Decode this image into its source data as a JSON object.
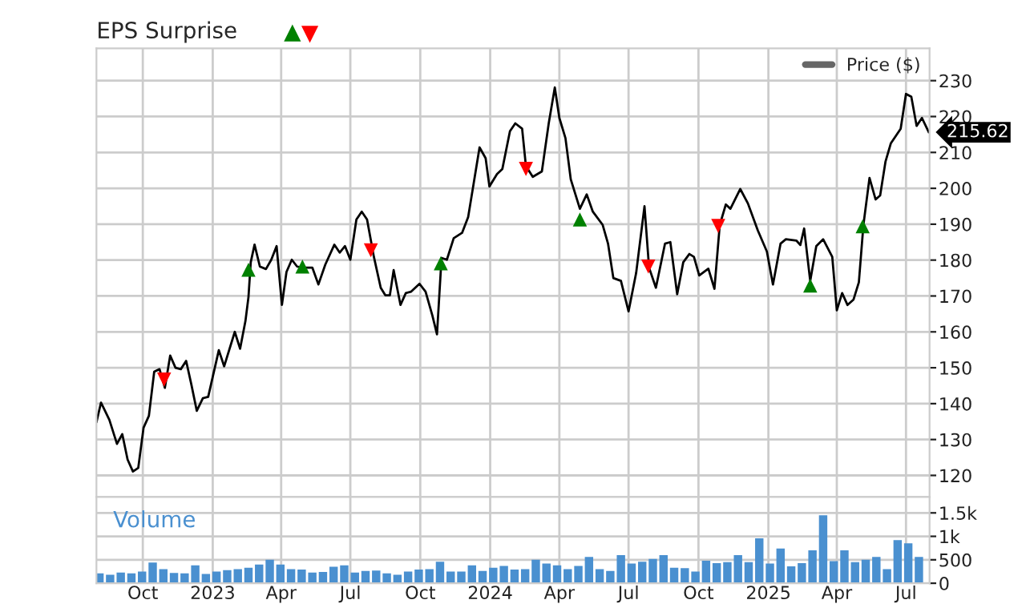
{
  "chart_data": [
    {
      "type": "line",
      "title": "EPS Surprise",
      "legend": "top right",
      "grid": true,
      "tick_labels": "y",
      "xlim": [
        "2022-08-01",
        "2025-08-01"
      ],
      "xticks": [
        {
          "value": "2022-10-01",
          "label": null
        },
        {
          "value": "2023-01-01",
          "label": null
        },
        {
          "value": "2023-04-01",
          "label": null
        },
        {
          "value": "2023-07-01",
          "label": null
        },
        {
          "value": "2023-10-01",
          "label": null
        },
        {
          "value": "2024-01-01",
          "label": null
        },
        {
          "value": "2024-04-01",
          "label": null
        },
        {
          "value": "2024-07-01",
          "label": null
        },
        {
          "value": "2024-10-01",
          "label": null
        },
        {
          "value": "2025-01-01",
          "label": null
        },
        {
          "value": "2025-04-01",
          "label": null
        },
        {
          "value": "2025-07-01",
          "label": null
        }
      ],
      "ylim": [
        114,
        239
      ],
      "yticks": [
        120,
        130,
        140,
        150,
        160,
        170,
        180,
        190,
        200,
        210,
        220,
        230
      ],
      "annotations": [
        {
          "text": "215.62",
          "x": "2025-07-31",
          "y": 215.62
        }
      ],
      "x": [
        "2022-08-01",
        "2022-08-07",
        "2022-08-18",
        "2022-08-28",
        "2022-09-04",
        "2022-09-11",
        "2022-09-18",
        "2022-09-25",
        "2022-10-02",
        "2022-10-09",
        "2022-10-16",
        "2022-10-23",
        "2022-10-30",
        "2022-11-06",
        "2022-11-13",
        "2022-11-20",
        "2022-11-27",
        "2022-12-04",
        "2022-12-11",
        "2022-12-19",
        "2022-12-26",
        "2023-01-09",
        "2023-01-16",
        "2023-01-30",
        "2023-02-06",
        "2023-02-13",
        "2023-02-17",
        "2023-02-20",
        "2023-02-25",
        "2023-03-04",
        "2023-03-12",
        "2023-03-19",
        "2023-03-26",
        "2023-04-02",
        "2023-04-08",
        "2023-04-15",
        "2023-04-22",
        "2023-04-29",
        "2023-05-12",
        "2023-05-20",
        "2023-05-29",
        "2023-06-10",
        "2023-06-17",
        "2023-06-24",
        "2023-07-01",
        "2023-07-09",
        "2023-07-16",
        "2023-07-23",
        "2023-08-01",
        "2023-08-10",
        "2023-08-16",
        "2023-08-22",
        "2023-08-27",
        "2023-09-05",
        "2023-09-12",
        "2023-09-19",
        "2023-09-30",
        "2023-10-08",
        "2023-10-17",
        "2023-10-23",
        "2023-10-29",
        "2023-11-05",
        "2023-11-14",
        "2023-11-25",
        "2023-12-03",
        "2023-12-10",
        "2023-12-18",
        "2023-12-26",
        "2023-12-31",
        "2024-01-10",
        "2024-01-17",
        "2024-01-27",
        "2024-02-03",
        "2024-02-12",
        "2024-02-17",
        "2024-02-26",
        "2024-03-09",
        "2024-03-18",
        "2024-03-26",
        "2024-04-01",
        "2024-04-09",
        "2024-04-16",
        "2024-04-28",
        "2024-05-07",
        "2024-05-15",
        "2024-05-28",
        "2024-06-04",
        "2024-06-11",
        "2024-06-21",
        "2024-07-01",
        "2024-07-11",
        "2024-07-22",
        "2024-07-28",
        "2024-08-06",
        "2024-08-18",
        "2024-08-25",
        "2024-09-03",
        "2024-09-11",
        "2024-09-19",
        "2024-09-25",
        "2024-10-02",
        "2024-10-14",
        "2024-10-22",
        "2024-10-29",
        "2024-11-06",
        "2024-11-12",
        "2024-11-25",
        "2024-12-05",
        "2024-12-18",
        "2024-12-30",
        "2025-01-07",
        "2025-01-17",
        "2025-01-24",
        "2025-02-07",
        "2025-02-12",
        "2025-02-17",
        "2025-02-25",
        "2025-03-05",
        "2025-03-14",
        "2025-03-26",
        "2025-04-01",
        "2025-04-08",
        "2025-04-15",
        "2025-04-23",
        "2025-04-30",
        "2025-05-06",
        "2025-05-14",
        "2025-05-22",
        "2025-05-28",
        "2025-06-04",
        "2025-06-11",
        "2025-06-24",
        "2025-07-01",
        "2025-07-08",
        "2025-07-15",
        "2025-07-22",
        "2025-07-31"
      ],
      "series": [
        {
          "name": "Price ($)",
          "color": "#000000",
          "values": [
            134.8,
            140.3,
            135.5,
            128.8,
            131.5,
            124.4,
            121.1,
            122.1,
            133.3,
            136.6,
            148.9,
            149.6,
            144.4,
            153.4,
            150,
            149.6,
            151.9,
            145.2,
            138,
            141.5,
            141.9,
            154.9,
            150.4,
            160,
            155.3,
            163,
            169.7,
            179.4,
            184.3,
            178.2,
            177.5,
            180.1,
            183.9,
            167.5,
            176.7,
            180.1,
            178.2,
            177.9,
            177.9,
            173.2,
            178.7,
            184.3,
            182.1,
            183.9,
            180.1,
            191.3,
            193.5,
            191.3,
            180.9,
            172.3,
            170.2,
            170.2,
            177.2,
            167.5,
            170.8,
            171.2,
            173.4,
            171.2,
            164.5,
            159.3,
            180.6,
            180.1,
            186.1,
            187.6,
            192,
            201,
            211.4,
            208.4,
            200.5,
            204,
            205.4,
            215.9,
            218.1,
            216.6,
            206.2,
            203.2,
            204.7,
            218.1,
            228.1,
            219.6,
            214,
            202.5,
            194.3,
            198.3,
            193.5,
            189.8,
            184.6,
            175,
            174.2,
            165.7,
            176.4,
            195,
            177.9,
            172.3,
            184.6,
            185,
            170.5,
            179.4,
            181.7,
            180.9,
            175.7,
            177.6,
            172,
            189.8,
            195.5,
            194.3,
            199.8,
            195.8,
            188.3,
            182.4,
            173.2,
            184.6,
            185.8,
            185.4,
            184.2,
            188.8,
            174.2,
            183.9,
            185.8,
            180.9,
            166,
            170.8,
            167.5,
            169,
            173.8,
            189.8,
            202.9,
            196.9,
            198,
            207.4,
            212.5,
            216.6,
            226.3,
            225.5,
            217.4,
            219.6,
            215.62
          ]
        },
        {
          "type": "scatter",
          "color": "#008000",
          "marker": "triangle",
          "x": [
            "2023-02-17",
            "2023-04-29",
            "2023-10-28",
            "2024-04-28",
            "2025-02-25",
            "2025-05-05"
          ],
          "values": [
            177.3,
            178.2,
            179.1,
            191.3,
            172.9,
            189.4
          ]
        },
        {
          "type": "scatter",
          "color": "#ff0000",
          "marker": "triangle_down",
          "x": [
            "2022-10-29",
            "2023-07-28",
            "2024-02-17",
            "2024-07-27",
            "2024-10-27"
          ],
          "values": [
            146.7,
            182.7,
            205.4,
            178.2,
            189.5
          ]
        }
      ]
    },
    {
      "type": "bar",
      "title": "Volume",
      "grid": true,
      "color": "#4a90d0",
      "xlim": [
        "2022-08-01",
        "2025-08-01"
      ],
      "xticks": [
        {
          "value": "2022-10-01",
          "label": "Oct"
        },
        {
          "value": "2023-01-01",
          "label": "2023"
        },
        {
          "value": "2023-04-01",
          "label": "Apr"
        },
        {
          "value": "2023-07-01",
          "label": "Jul"
        },
        {
          "value": "2023-10-01",
          "label": "Oct"
        },
        {
          "value": "2024-01-01",
          "label": "2024"
        },
        {
          "value": "2024-04-01",
          "label": "Apr"
        },
        {
          "value": "2024-07-01",
          "label": "Jul"
        },
        {
          "value": "2024-10-01",
          "label": "Oct"
        },
        {
          "value": "2025-01-01",
          "label": "2025"
        },
        {
          "value": "2025-04-01",
          "label": "Apr"
        },
        {
          "value": "2025-07-01",
          "label": "Jul"
        }
      ],
      "ylim": [
        0,
        1840
      ],
      "yticks": [
        0,
        500,
        {
          "value": 1000,
          "label": "1k"
        },
        {
          "value": 1500,
          "label": "1.5k"
        }
      ],
      "x": [
        "2022-08-05",
        "2022-08-19",
        "2022-09-02",
        "2022-09-16",
        "2022-09-30",
        "2022-10-14",
        "2022-10-28",
        "2022-11-11",
        "2022-11-25",
        "2022-12-09",
        "2022-12-23",
        "2023-01-06",
        "2023-01-20",
        "2023-02-03",
        "2023-02-17",
        "2023-03-03",
        "2023-03-17",
        "2023-03-31",
        "2023-04-14",
        "2023-04-28",
        "2023-05-12",
        "2023-05-26",
        "2023-06-09",
        "2023-06-23",
        "2023-07-07",
        "2023-07-21",
        "2023-08-04",
        "2023-08-18",
        "2023-09-01",
        "2023-09-15",
        "2023-09-29",
        "2023-10-13",
        "2023-10-27",
        "2023-11-10",
        "2023-11-24",
        "2023-12-08",
        "2023-12-22",
        "2024-01-05",
        "2024-01-19",
        "2024-02-02",
        "2024-02-16",
        "2024-03-01",
        "2024-03-15",
        "2024-03-29",
        "2024-04-12",
        "2024-04-26",
        "2024-05-10",
        "2024-05-24",
        "2024-06-07",
        "2024-06-21",
        "2024-07-05",
        "2024-07-19",
        "2024-08-02",
        "2024-08-16",
        "2024-08-30",
        "2024-09-13",
        "2024-09-27",
        "2024-10-11",
        "2024-10-25",
        "2024-11-08",
        "2024-11-22",
        "2024-12-06",
        "2024-12-20",
        "2025-01-03",
        "2025-01-17",
        "2025-01-31",
        "2025-02-14",
        "2025-02-28",
        "2025-03-14",
        "2025-03-28",
        "2025-04-11",
        "2025-04-25",
        "2025-05-09",
        "2025-05-23",
        "2025-06-06",
        "2025-06-20",
        "2025-07-04",
        "2025-07-18"
      ],
      "values": [
        210,
        180,
        230,
        210,
        250,
        440,
        300,
        220,
        210,
        380,
        200,
        250,
        280,
        300,
        330,
        400,
        500,
        400,
        300,
        290,
        230,
        240,
        350,
        380,
        230,
        260,
        270,
        210,
        180,
        250,
        290,
        300,
        460,
        250,
        250,
        380,
        260,
        330,
        370,
        290,
        300,
        500,
        420,
        380,
        300,
        370,
        560,
        300,
        260,
        600,
        420,
        460,
        520,
        600,
        330,
        320,
        250,
        480,
        430,
        450,
        600,
        450,
        960,
        420,
        740,
        360,
        430,
        700,
        1450,
        470,
        700,
        450,
        500,
        560,
        300,
        920,
        850,
        560
      ]
    }
  ]
}
